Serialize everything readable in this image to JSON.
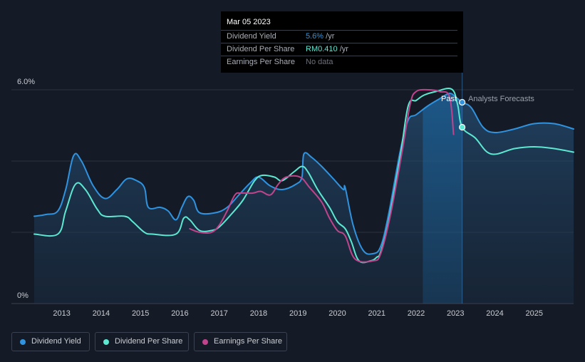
{
  "tooltip": {
    "date": "Mar 05 2023",
    "rows": [
      {
        "label": "Dividend Yield",
        "value": "5.6%",
        "unit": " /yr",
        "color": "#2f93e0"
      },
      {
        "label": "Dividend Per Share",
        "value": "RM0.410",
        "unit": " /yr",
        "color": "#5de8d2"
      },
      {
        "label": "Earnings Per Share",
        "value": "No data",
        "unit": "",
        "color": "#6b7079"
      }
    ]
  },
  "regions": {
    "past": "Past",
    "forecast": "Analysts Forecasts"
  },
  "legend": [
    {
      "label": "Dividend Yield",
      "color": "#2f93e0"
    },
    {
      "label": "Dividend Per Share",
      "color": "#5de8d2"
    },
    {
      "label": "Earnings Per Share",
      "color": "#c0438c"
    }
  ],
  "chart_data": {
    "type": "line",
    "title": "",
    "xlabel": "",
    "ylabel": "",
    "y_tick_labels": [
      "0%",
      "6.0%"
    ],
    "ylim": [
      0,
      6.0
    ],
    "xlim": [
      2012.3,
      2026.0
    ],
    "x_ticks": [
      2013,
      2014,
      2015,
      2016,
      2017,
      2018,
      2019,
      2020,
      2021,
      2022,
      2023,
      2024,
      2025
    ],
    "grid": true,
    "legend_position": "bottom-left",
    "past_forecast_divider_x": 2023.17,
    "highlight_range": [
      2022.17,
      2023.17
    ],
    "series": [
      {
        "name": "Dividend Yield",
        "color": "#2f93e0",
        "filled": true,
        "points": [
          [
            2012.3,
            2.45
          ],
          [
            2012.6,
            2.5
          ],
          [
            2012.9,
            2.6
          ],
          [
            2013.1,
            3.2
          ],
          [
            2013.3,
            4.15
          ],
          [
            2013.5,
            4.0
          ],
          [
            2013.8,
            3.3
          ],
          [
            2014.1,
            2.95
          ],
          [
            2014.4,
            3.2
          ],
          [
            2014.65,
            3.5
          ],
          [
            2014.9,
            3.45
          ],
          [
            2015.1,
            3.25
          ],
          [
            2015.2,
            2.7
          ],
          [
            2015.5,
            2.7
          ],
          [
            2015.7,
            2.6
          ],
          [
            2015.9,
            2.35
          ],
          [
            2016.05,
            2.7
          ],
          [
            2016.2,
            3.0
          ],
          [
            2016.35,
            2.9
          ],
          [
            2016.5,
            2.55
          ],
          [
            2016.9,
            2.55
          ],
          [
            2017.2,
            2.7
          ],
          [
            2017.5,
            3.05
          ],
          [
            2017.8,
            3.4
          ],
          [
            2018.0,
            3.55
          ],
          [
            2018.3,
            3.3
          ],
          [
            2018.6,
            3.2
          ],
          [
            2018.95,
            3.35
          ],
          [
            2019.1,
            3.55
          ],
          [
            2019.15,
            4.2
          ],
          [
            2019.35,
            4.1
          ],
          [
            2019.6,
            3.85
          ],
          [
            2019.9,
            3.5
          ],
          [
            2020.15,
            3.2
          ],
          [
            2020.2,
            3.25
          ],
          [
            2020.4,
            2.2
          ],
          [
            2020.65,
            1.5
          ],
          [
            2020.9,
            1.4
          ],
          [
            2021.1,
            1.6
          ],
          [
            2021.3,
            2.5
          ],
          [
            2021.6,
            4.3
          ],
          [
            2021.8,
            5.15
          ],
          [
            2022.0,
            5.3
          ],
          [
            2022.3,
            5.55
          ],
          [
            2022.6,
            5.75
          ],
          [
            2022.85,
            5.9
          ],
          [
            2023.0,
            5.8
          ],
          [
            2023.17,
            5.65
          ],
          [
            2023.4,
            5.5
          ],
          [
            2023.7,
            4.95
          ],
          [
            2024.0,
            4.8
          ],
          [
            2024.5,
            4.9
          ],
          [
            2025.0,
            5.05
          ],
          [
            2025.5,
            5.05
          ],
          [
            2026.0,
            4.9
          ]
        ]
      },
      {
        "name": "Dividend Per Share",
        "color": "#5de8d2",
        "filled": false,
        "points": [
          [
            2012.3,
            1.95
          ],
          [
            2012.9,
            1.95
          ],
          [
            2013.1,
            2.6
          ],
          [
            2013.35,
            3.35
          ],
          [
            2013.6,
            3.2
          ],
          [
            2013.9,
            2.65
          ],
          [
            2014.1,
            2.45
          ],
          [
            2014.6,
            2.45
          ],
          [
            2014.8,
            2.3
          ],
          [
            2015.1,
            2.0
          ],
          [
            2015.3,
            1.95
          ],
          [
            2015.9,
            1.95
          ],
          [
            2016.1,
            2.4
          ],
          [
            2016.25,
            2.35
          ],
          [
            2016.5,
            2.05
          ],
          [
            2016.8,
            2.05
          ],
          [
            2017.0,
            2.15
          ],
          [
            2017.3,
            2.5
          ],
          [
            2017.6,
            2.9
          ],
          [
            2017.9,
            3.45
          ],
          [
            2018.1,
            3.6
          ],
          [
            2018.4,
            3.55
          ],
          [
            2018.6,
            3.45
          ],
          [
            2018.9,
            3.7
          ],
          [
            2019.1,
            3.85
          ],
          [
            2019.25,
            3.7
          ],
          [
            2019.5,
            3.2
          ],
          [
            2019.8,
            2.7
          ],
          [
            2020.0,
            2.3
          ],
          [
            2020.2,
            2.1
          ],
          [
            2020.35,
            1.75
          ],
          [
            2020.55,
            1.2
          ],
          [
            2020.85,
            1.2
          ],
          [
            2021.0,
            1.3
          ],
          [
            2021.1,
            1.45
          ],
          [
            2021.3,
            2.3
          ],
          [
            2021.6,
            4.15
          ],
          [
            2021.8,
            5.55
          ],
          [
            2022.0,
            5.7
          ],
          [
            2022.2,
            5.85
          ],
          [
            2022.5,
            5.95
          ],
          [
            2022.9,
            6.02
          ],
          [
            2023.05,
            5.6
          ],
          [
            2023.17,
            4.95
          ],
          [
            2023.5,
            4.65
          ],
          [
            2023.9,
            4.2
          ],
          [
            2024.5,
            4.35
          ],
          [
            2025.0,
            4.4
          ],
          [
            2025.5,
            4.35
          ],
          [
            2026.0,
            4.25
          ]
        ]
      },
      {
        "name": "Earnings Per Share",
        "color": "#c0438c",
        "filled": false,
        "points": [
          [
            2016.25,
            2.1
          ],
          [
            2016.5,
            2.0
          ],
          [
            2016.8,
            2.0
          ],
          [
            2017.0,
            2.2
          ],
          [
            2017.2,
            2.6
          ],
          [
            2017.4,
            3.05
          ],
          [
            2017.55,
            3.1
          ],
          [
            2017.85,
            3.1
          ],
          [
            2018.05,
            3.15
          ],
          [
            2018.3,
            3.05
          ],
          [
            2018.5,
            3.35
          ],
          [
            2018.7,
            3.55
          ],
          [
            2019.05,
            3.55
          ],
          [
            2019.3,
            3.25
          ],
          [
            2019.6,
            2.85
          ],
          [
            2019.8,
            2.4
          ],
          [
            2020.0,
            2.05
          ],
          [
            2020.2,
            1.9
          ],
          [
            2020.45,
            1.25
          ],
          [
            2020.9,
            1.2
          ],
          [
            2021.1,
            1.4
          ],
          [
            2021.35,
            2.5
          ],
          [
            2021.65,
            4.3
          ],
          [
            2021.85,
            5.6
          ],
          [
            2022.0,
            5.95
          ],
          [
            2022.3,
            6.0
          ],
          [
            2022.6,
            5.95
          ],
          [
            2022.85,
            5.8
          ],
          [
            2022.95,
            4.75
          ]
        ]
      }
    ],
    "markers": [
      {
        "series": "Dividend Yield",
        "x": 2023.17,
        "y": 5.65
      },
      {
        "series": "Dividend Per Share",
        "x": 2023.17,
        "y": 4.95
      }
    ]
  }
}
